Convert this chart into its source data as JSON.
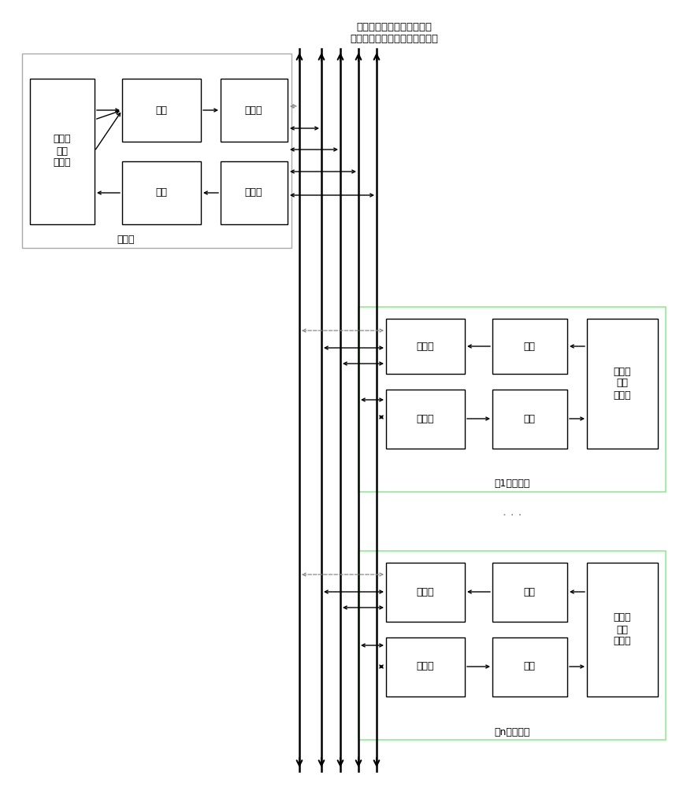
{
  "title_text": "共五条数据通道，四条处于\n工作状态，另一条处于备份状态",
  "master_label": "主站点",
  "master_controller_label": "主站点\n通信\n控制器",
  "encode_label": "编码",
  "parallel_serial_label": "并转串",
  "decode_label": "解码",
  "serial_parallel_label": "串转并",
  "slave1_label": "第1路从站点",
  "slave_n_label": "第n路从站点",
  "slave_controller_label": "从站点\n通信\n控制器",
  "slave_encode_label": "编码",
  "slave_decode_label": "解码",
  "slave_ps_label": "并转串",
  "slave_sp_label": "串转并",
  "dots": "· · ·",
  "bg_color": "#ffffff"
}
